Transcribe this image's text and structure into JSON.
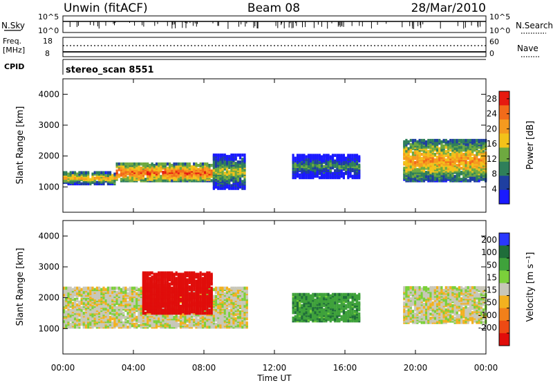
{
  "header": {
    "station": "Unwin (fitACF)",
    "beam": "Beam 08",
    "date": "28/Mar/2010"
  },
  "nsky": {
    "label": "N.Sky",
    "ticks": [
      "10^5",
      "10^0"
    ],
    "right_label": "N.Search",
    "right_ticks": [
      "10^5",
      "10^0"
    ]
  },
  "freq": {
    "label_line1": "Freq.",
    "label_line2": "[MHz]",
    "ticks": [
      "18",
      "8"
    ],
    "right_label": "Nave",
    "right_ticks": [
      "60",
      "0"
    ]
  },
  "cpid": {
    "label": "CPID",
    "text": "stereo_scan 8551"
  },
  "colors": {
    "power": [
      "#1a1aff",
      "#1f3fa0",
      "#2f7f5a",
      "#6ea940",
      "#f3c21a",
      "#f59a1f",
      "#f26b1a",
      "#e61a10"
    ],
    "velocity": [
      "#2a38ff",
      "#1f6d3a",
      "#3fa23b",
      "#7bd03a",
      "#c8c7b9",
      "#f3b11f",
      "#f2801a",
      "#ee4a14",
      "#e00d0a"
    ]
  },
  "chart_data": [
    {
      "type": "heatmap",
      "title": "Power",
      "xlabel": "Time UT",
      "ylabel": "Slant Range [km]",
      "x_ticks": [
        "00:00",
        "04:00",
        "08:00",
        "12:00",
        "16:00",
        "20:00",
        "00:00"
      ],
      "y_ticks": [
        "1000",
        "2000",
        "3000",
        "4000"
      ],
      "xlim_hours": [
        0,
        24
      ],
      "ylim_km": [
        180,
        4500
      ],
      "colorbar": {
        "label": "Power [dB]",
        "ticks": [
          "4",
          "8",
          "12",
          "16",
          "20",
          "24",
          "28"
        ],
        "range": [
          0,
          30
        ]
      },
      "echo_bands": [
        {
          "start_h": 0.0,
          "end_h": 3.0,
          "range_km": [
            1050,
            1450
          ],
          "power_db": 20
        },
        {
          "start_h": 3.0,
          "end_h": 8.5,
          "range_km": [
            1150,
            1700
          ],
          "power_db": 26
        },
        {
          "start_h": 8.5,
          "end_h": 10.3,
          "range_km": [
            900,
            2000
          ],
          "power_db": 16
        },
        {
          "start_h": 13.0,
          "end_h": 16.8,
          "range_km": [
            1250,
            2000
          ],
          "power_db": 12
        },
        {
          "start_h": 19.3,
          "end_h": 24.0,
          "range_km": [
            1150,
            2500
          ],
          "power_db": 22
        }
      ]
    },
    {
      "type": "heatmap",
      "title": "Velocity",
      "xlabel": "Time UT",
      "ylabel": "Slant Range [km]",
      "x_ticks": [
        "00:00",
        "04:00",
        "08:00",
        "12:00",
        "16:00",
        "20:00",
        "00:00"
      ],
      "y_ticks": [
        "1000",
        "2000",
        "3000",
        "4000"
      ],
      "xlim_hours": [
        0,
        24
      ],
      "ylim_km": [
        180,
        4500
      ],
      "colorbar": {
        "label": "Velocity [m s⁻¹]",
        "ticks": [
          "200",
          "100",
          "50",
          "15",
          "-15",
          "-50",
          "-100",
          "-200"
        ],
        "range": [
          -250,
          250
        ]
      },
      "echo_bands": [
        {
          "start_h": 0.0,
          "end_h": 10.5,
          "range_km": [
            1000,
            2300
          ],
          "velocity_ms": 0
        },
        {
          "start_h": 4.5,
          "end_h": 8.5,
          "range_km": [
            1450,
            2800
          ],
          "velocity_ms": -200
        },
        {
          "start_h": 13.0,
          "end_h": 16.8,
          "range_km": [
            1200,
            2100
          ],
          "velocity_ms": 60
        },
        {
          "start_h": 19.3,
          "end_h": 24.0,
          "range_km": [
            1150,
            2300
          ],
          "velocity_ms": 0
        }
      ]
    }
  ]
}
